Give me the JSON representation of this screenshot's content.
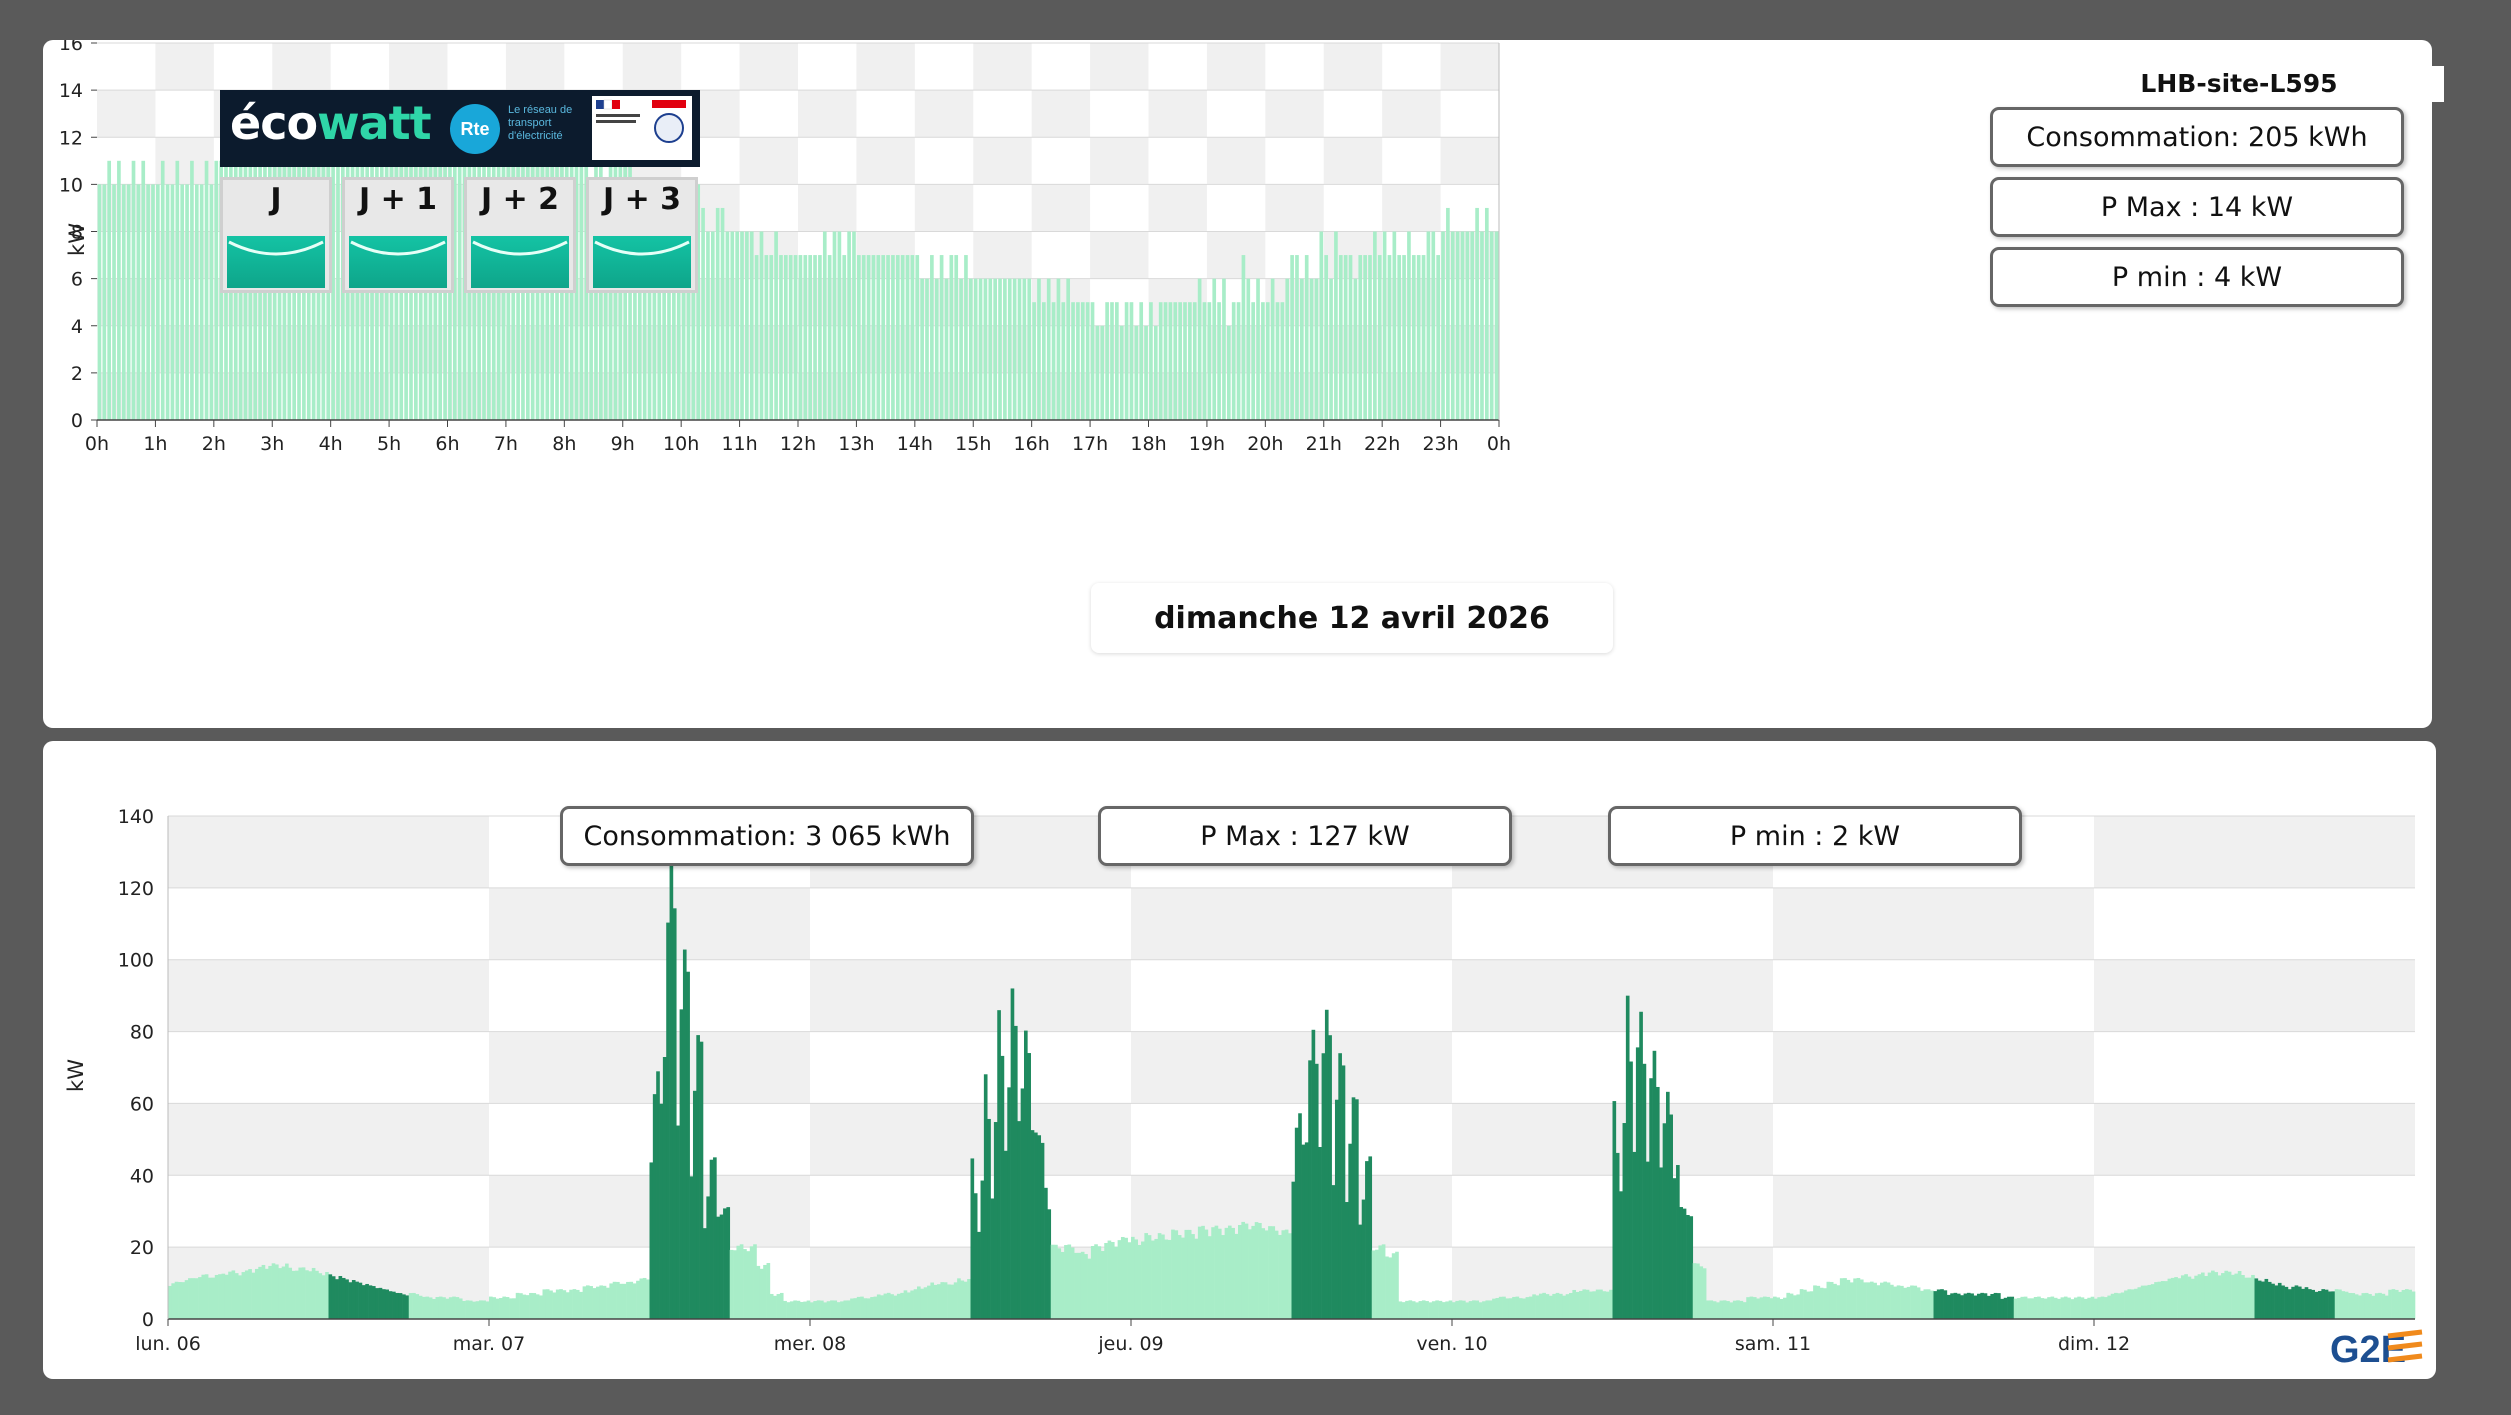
{
  "top_chart": {
    "site": "LHB-site-L595",
    "consumption_label": "Consommation: 205 kWh",
    "pmax_label": "P Max :  14 kW",
    "pmin_label": "P min : 4 kW",
    "date_label": "dimanche 12 avril 2026",
    "ecowatt": {
      "brand": "écowatt",
      "rte": "Rte",
      "rte_caption": "Le réseau de transport d'électricité",
      "days": [
        "J",
        "J + 1",
        "J + 2",
        "J + 3"
      ],
      "signal_color": "#12b89a"
    }
  },
  "bottom_chart": {
    "consumption_label": "Consommation: 3 065 kWh",
    "pmax_label": "P Max :  127 kW",
    "pmin_label": "P min : 2 kW"
  },
  "logo": "G2E",
  "colors": {
    "bar_light": "#a8edc8",
    "bar_dark": "#1f8a5f",
    "band": "#f0f0f0"
  },
  "chart_data": [
    {
      "type": "bar",
      "title": "",
      "xlabel": "",
      "ylabel": "kW",
      "ylim": [
        0,
        16
      ],
      "yticks": [
        0,
        2,
        4,
        6,
        8,
        10,
        12,
        14,
        16
      ],
      "xticks": [
        "0h",
        "1h",
        "2h",
        "3h",
        "4h",
        "5h",
        "6h",
        "7h",
        "8h",
        "9h",
        "10h",
        "11h",
        "12h",
        "13h",
        "14h",
        "15h",
        "16h",
        "17h",
        "18h",
        "19h",
        "20h",
        "21h",
        "22h",
        "23h",
        "0h"
      ],
      "grid": true,
      "interval": "5 min",
      "hourly_values": [
        [
          10,
          10,
          11,
          10,
          11,
          10,
          10,
          11,
          10,
          11,
          10,
          10
        ],
        [
          10,
          11,
          10,
          10,
          11,
          10,
          10,
          11,
          10,
          10,
          11,
          10
        ],
        [
          11,
          11,
          11,
          11,
          11,
          11,
          11,
          11,
          11,
          11,
          11,
          11
        ],
        [
          11,
          11,
          11,
          11,
          11,
          11,
          11,
          11,
          11,
          11,
          11,
          11
        ],
        [
          11,
          11,
          11,
          11,
          11,
          11,
          11,
          11,
          11,
          11,
          11,
          11
        ],
        [
          11,
          11,
          11,
          11,
          11,
          11,
          12,
          11,
          11,
          11,
          12,
          11
        ],
        [
          12,
          12,
          11,
          12,
          13,
          12,
          14,
          12,
          13,
          12,
          13,
          12
        ],
        [
          13,
          12,
          12,
          12,
          12,
          11,
          12,
          11,
          13,
          12,
          12,
          12
        ],
        [
          12,
          12,
          11,
          11,
          11,
          10,
          11,
          11,
          10,
          11,
          11,
          11
        ],
        [
          11,
          11,
          10,
          10,
          10,
          9,
          9,
          9,
          10,
          9,
          9,
          8
        ],
        [
          9,
          8,
          9,
          10,
          9,
          8,
          8,
          9,
          9,
          8,
          8,
          8
        ],
        [
          8,
          8,
          8,
          7,
          8,
          7,
          7,
          8,
          7,
          7,
          7,
          7
        ],
        [
          7,
          7,
          7,
          7,
          7,
          8,
          7,
          8,
          8,
          7,
          8,
          8
        ],
        [
          7,
          7,
          7,
          7,
          7,
          7,
          7,
          7,
          7,
          7,
          7,
          7
        ],
        [
          7,
          6,
          6,
          7,
          6,
          7,
          6,
          7,
          7,
          6,
          7,
          6
        ],
        [
          6,
          6,
          6,
          6,
          6,
          6,
          6,
          6,
          6,
          6,
          6,
          6
        ],
        [
          5,
          6,
          5,
          6,
          5,
          6,
          5,
          6,
          5,
          5,
          5,
          5
        ],
        [
          5,
          4,
          4,
          5,
          5,
          5,
          4,
          5,
          5,
          4,
          5,
          4
        ],
        [
          5,
          4,
          5,
          5,
          5,
          5,
          5,
          5,
          5,
          5,
          6,
          5
        ],
        [
          5,
          6,
          5,
          6,
          4,
          5,
          5,
          7,
          6,
          5,
          6,
          5
        ],
        [
          5,
          6,
          5,
          5,
          6,
          7,
          7,
          6,
          7,
          6,
          6,
          8
        ],
        [
          7,
          6,
          8,
          7,
          7,
          7,
          6,
          7,
          7,
          7,
          8,
          7
        ],
        [
          8,
          7,
          8,
          7,
          7,
          8,
          7,
          7,
          7,
          8,
          8,
          7
        ],
        [
          8,
          9,
          8,
          8,
          8,
          8,
          8,
          9,
          8,
          9,
          8,
          8
        ]
      ]
    },
    {
      "type": "area",
      "title": "",
      "xlabel": "",
      "ylabel": "kW",
      "ylim": [
        0,
        140
      ],
      "yticks": [
        0,
        20,
        40,
        60,
        80,
        100,
        120,
        140
      ],
      "xticks": [
        "lun. 06",
        "mar. 07",
        "mer. 08",
        "jeu. 09",
        "ven. 10",
        "sam. 11",
        "dim. 12"
      ],
      "grid": true,
      "series": [
        {
          "values_per_hour_mon": [
            10,
            11,
            12,
            12,
            13,
            13,
            14,
            15,
            15,
            14,
            14,
            13,
            12,
            11,
            10,
            9,
            8,
            7,
            7,
            6,
            6,
            6,
            5,
            5
          ]
        },
        {
          "values_per_hour_tue": [
            6,
            6,
            7,
            7,
            8,
            8,
            8,
            9,
            9,
            10,
            10,
            11,
            60,
            110,
            90,
            70,
            40,
            30,
            20,
            20,
            15,
            7,
            5,
            5
          ]
        },
        {
          "values_per_hour_wed": [
            5,
            5,
            5,
            6,
            6,
            7,
            7,
            8,
            9,
            10,
            10,
            11,
            40,
            60,
            75,
            80,
            70,
            45,
            20,
            20,
            18,
            20,
            21,
            22
          ]
        },
        {
          "values_per_hour_thu": [
            22,
            23,
            23,
            24,
            24,
            25,
            25,
            25,
            26,
            26,
            25,
            24,
            50,
            70,
            75,
            65,
            55,
            40,
            20,
            18,
            5,
            5,
            5,
            5
          ]
        },
        {
          "values_per_hour_fri": [
            5,
            5,
            5,
            6,
            6,
            6,
            7,
            7,
            7,
            8,
            8,
            8,
            55,
            80,
            75,
            65,
            55,
            30,
            15,
            5,
            5,
            5,
            6,
            6
          ]
        },
        {
          "values_per_hour_sat": [
            6,
            7,
            8,
            9,
            10,
            11,
            11,
            10,
            10,
            9,
            9,
            8,
            8,
            7,
            7,
            7,
            7,
            6,
            6,
            6,
            6,
            6,
            6,
            6
          ]
        },
        {
          "values_per_hour_sun": [
            6,
            7,
            8,
            9,
            10,
            11,
            12,
            12,
            13,
            13,
            13,
            12,
            11,
            10,
            9,
            9,
            8,
            8,
            8,
            7,
            7,
            7,
            8,
            8
          ]
        }
      ],
      "max_value": 127,
      "min_value": 2
    }
  ]
}
